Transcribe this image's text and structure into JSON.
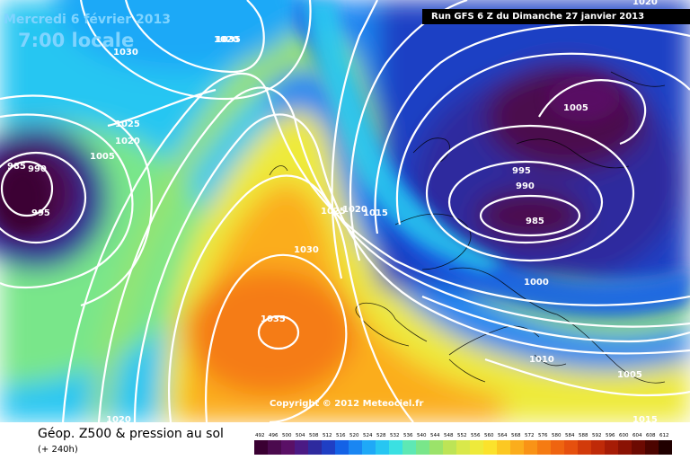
{
  "header": {
    "date": "Mercredi 6 février 2013",
    "time": "7:00 locale",
    "run": "Run GFS 6 Z du Dimanche 27 janvier 2013"
  },
  "copyright": "Copyright © 2012 Meteociel.fr",
  "footer": {
    "title": "Géop. Z500 & pression au sol",
    "subtitle": "(+ 240h)"
  },
  "isobar_labels": [
    "1020",
    "1035",
    "1030",
    "1025",
    "1020",
    "1005",
    "1020",
    "985",
    "990",
    "995",
    "1025",
    "1020",
    "1015",
    "1030",
    "1035",
    "1005",
    "995",
    "990",
    "985",
    "1000",
    "1010",
    "1005",
    "1015",
    "1020"
  ],
  "legend": {
    "values": [
      "492",
      "496",
      "500",
      "504",
      "508",
      "512",
      "516",
      "520",
      "524",
      "528",
      "532",
      "536",
      "540",
      "544",
      "548",
      "552",
      "556",
      "560",
      "564",
      "568",
      "572",
      "576",
      "580",
      "584",
      "588",
      "592",
      "596",
      "600",
      "604",
      "608",
      "612"
    ],
    "colors": [
      "#3a0032",
      "#4b0a4e",
      "#5a1066",
      "#4b1a84",
      "#2e2a9e",
      "#1f3fc4",
      "#1462e6",
      "#1a86f2",
      "#1fa9f7",
      "#27c6f2",
      "#3ae0e2",
      "#5ee8b4",
      "#79e68a",
      "#9be36a",
      "#bde456",
      "#d9e84a",
      "#eeea3a",
      "#fbe22c",
      "#fcc822",
      "#fbad1c",
      "#f99316",
      "#f57b12",
      "#ef6410",
      "#e6500e",
      "#d23a0a",
      "#bf2a08",
      "#a61c06",
      "#8a1204",
      "#6c0a02",
      "#4c0400",
      "#200000"
    ]
  }
}
